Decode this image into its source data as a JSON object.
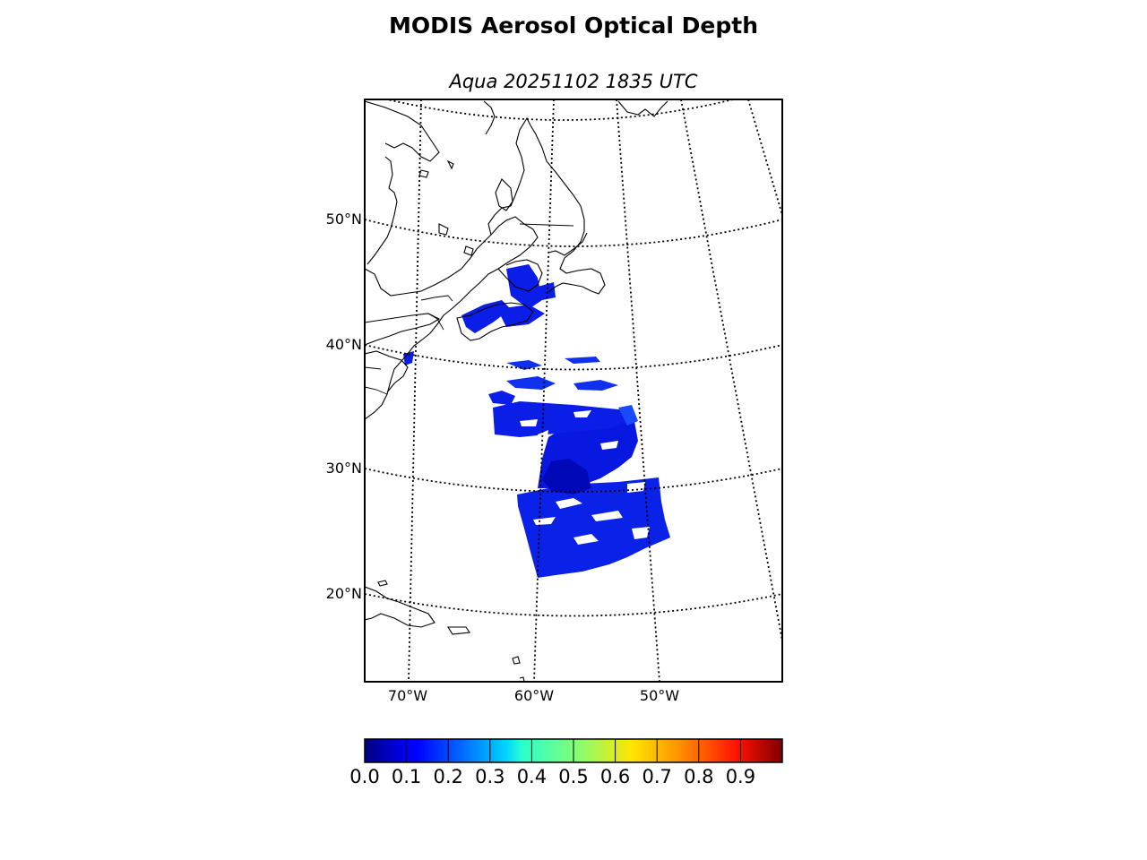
{
  "title": "MODIS Aerosol Optical Depth",
  "subtitle": "Aqua 20251102 1835 UTC",
  "map": {
    "lat_labels": [
      "50°N",
      "40°N",
      "30°N",
      "20°N"
    ],
    "lon_labels": [
      "70°W",
      "60°W",
      "50°W"
    ],
    "graticule_style": "dotted",
    "frame_color": "#000000"
  },
  "colorbar": {
    "colormap": "jet",
    "range": [
      0.0,
      1.0
    ],
    "tick_labels": [
      "0.0",
      "0.1",
      "0.2",
      "0.3",
      "0.4",
      "0.5",
      "0.6",
      "0.7",
      "0.8",
      "0.9"
    ]
  }
}
